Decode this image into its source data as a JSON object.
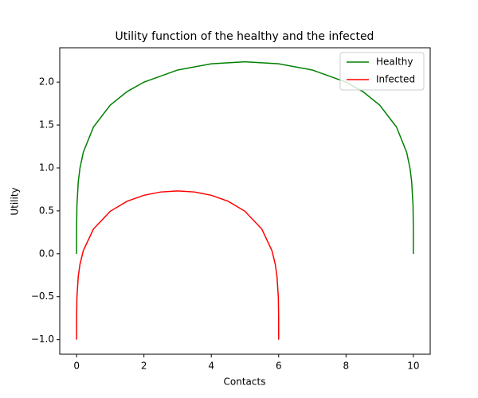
{
  "chart_data": {
    "type": "line",
    "title": "Utility function of the healthy and the infected",
    "xlabel": "Contacts",
    "ylabel": "Utility",
    "xlim": [
      -0.5,
      10.5
    ],
    "ylim": [
      -1.17,
      2.4
    ],
    "xticks": [
      0,
      2,
      4,
      6,
      8,
      10
    ],
    "yticks": [
      {
        "value": -1,
        "label": "−1.0"
      },
      {
        "value": -0.5,
        "label": "−0.5"
      },
      {
        "value": 0,
        "label": "0.0"
      },
      {
        "value": 0.5,
        "label": "0.5"
      },
      {
        "value": 1,
        "label": "1.0"
      },
      {
        "value": 1.5,
        "label": "1.5"
      },
      {
        "value": 2,
        "label": "2.0"
      }
    ],
    "legend": "upper right",
    "series": [
      {
        "name": "Healthy",
        "color": "#008000",
        "x": [
          0,
          0.0001,
          0.001,
          0.01,
          0.05,
          0.1,
          0.2,
          0.5,
          1,
          1.5,
          2,
          3,
          4,
          5,
          6,
          7,
          8,
          8.5,
          9,
          9.5,
          9.8,
          9.9,
          9.95,
          9.99,
          9.999,
          9.9999,
          10
        ],
        "values": [
          0,
          0.1778,
          0.3162,
          0.5622,
          0.8398,
          0.9975,
          1.1832,
          1.4763,
          1.7321,
          1.8896,
          2,
          2.1407,
          2.2134,
          2.2361,
          2.2134,
          2.1407,
          2,
          1.8896,
          1.7321,
          1.4763,
          1.1832,
          0.9975,
          0.8398,
          0.5622,
          0.3162,
          0.1778,
          0
        ]
      },
      {
        "name": "Infected",
        "color": "#ff0000",
        "x": [
          0,
          0.0001,
          0.001,
          0.01,
          0.05,
          0.1,
          0.2,
          0.5,
          1,
          1.5,
          2,
          2.5,
          3,
          3.5,
          4,
          4.5,
          5,
          5.5,
          5.8,
          5.9,
          5.95,
          5.99,
          5.999,
          5.9999,
          6
        ],
        "values": [
          -1,
          -0.8435,
          -0.7217,
          -0.5053,
          -0.2615,
          -0.1236,
          0.0378,
          0.2878,
          0.4953,
          0.6119,
          0.6818,
          0.7199,
          0.7321,
          0.7199,
          0.6818,
          0.6119,
          0.4953,
          0.2878,
          0.0378,
          -0.1236,
          -0.2615,
          -0.5053,
          -0.7217,
          -0.8435,
          -1
        ]
      }
    ]
  }
}
